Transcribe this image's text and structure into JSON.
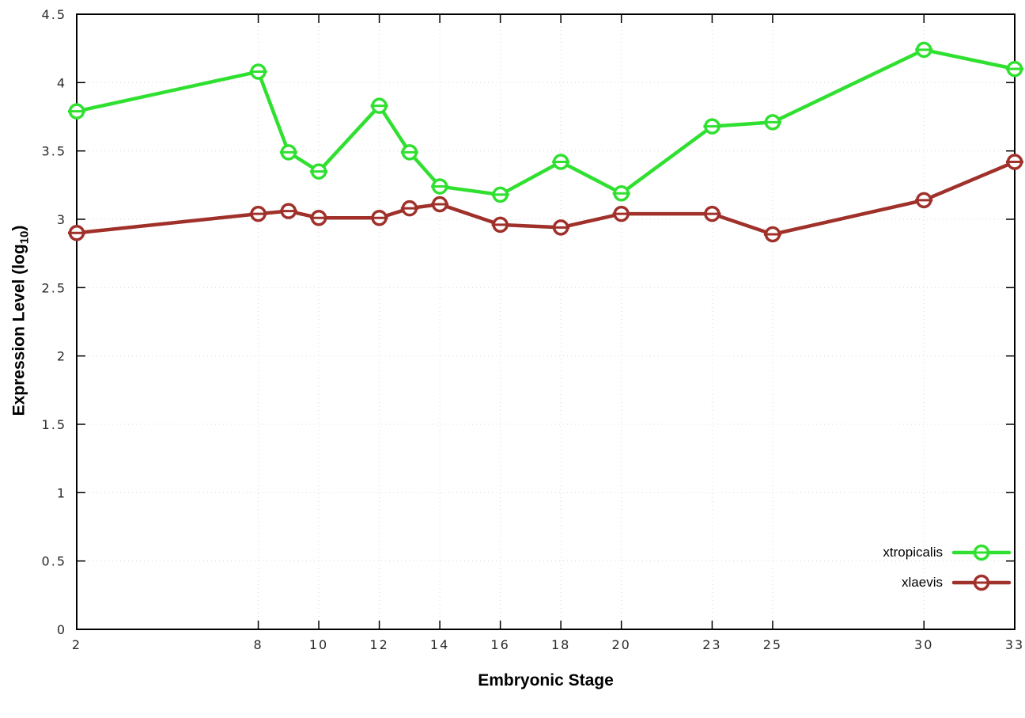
{
  "chart_data": {
    "type": "line",
    "title": "",
    "xlabel": "Embryonic Stage",
    "ylabel": "Expression Level (log10)",
    "ylabel_parts": {
      "prefix": "Expression Level (log",
      "sub": "10",
      "suffix": ")"
    },
    "xlim": [
      2,
      33
    ],
    "ylim": [
      0,
      4.5
    ],
    "y_tick_step": 0.5,
    "x_ticks": [
      2,
      8,
      10,
      12,
      14,
      16,
      18,
      20,
      23,
      25,
      30,
      33
    ],
    "y_ticks": [
      0,
      0.5,
      1,
      1.5,
      2,
      2.5,
      3,
      3.5,
      4,
      4.5
    ],
    "x": [
      2,
      8,
      9,
      10,
      12,
      13,
      14,
      16,
      18,
      20,
      23,
      25,
      30,
      33
    ],
    "series": [
      {
        "name": "xtropicalis",
        "color": "#30e030",
        "values": [
          3.79,
          4.08,
          3.49,
          3.35,
          3.83,
          3.49,
          3.24,
          3.18,
          3.42,
          3.19,
          3.68,
          3.71,
          4.24,
          4.1
        ]
      },
      {
        "name": "xlaevis",
        "color": "#a0302a",
        "values": [
          2.9,
          3.04,
          3.06,
          3.01,
          3.01,
          3.08,
          3.11,
          2.96,
          2.94,
          3.04,
          3.04,
          2.89,
          3.14,
          3.42
        ]
      }
    ],
    "grid": true,
    "legend_position": "inside-bottom-right"
  }
}
